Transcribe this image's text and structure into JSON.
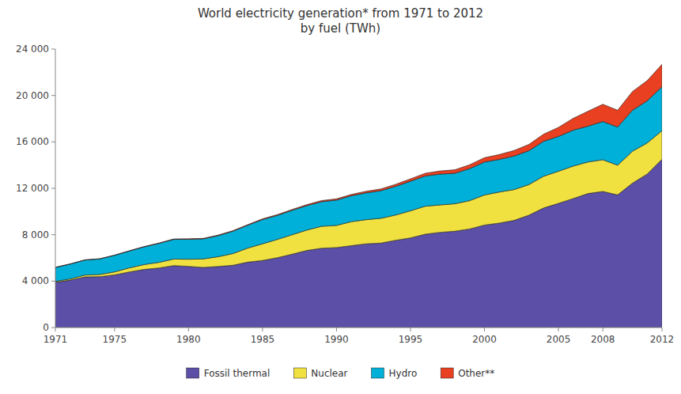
{
  "chart_data": {
    "type": "area",
    "stacked": true,
    "title": "World electricity generation* from 1971 to 2012\nby fuel (TWh)",
    "x": [
      1971,
      1972,
      1973,
      1974,
      1975,
      1976,
      1977,
      1978,
      1979,
      1980,
      1981,
      1982,
      1983,
      1984,
      1985,
      1986,
      1987,
      1988,
      1989,
      1990,
      1991,
      1992,
      1993,
      1994,
      1995,
      1996,
      1997,
      1998,
      1999,
      2000,
      2001,
      2002,
      2003,
      2004,
      2005,
      2006,
      2007,
      2008,
      2009,
      2010,
      2011,
      2012
    ],
    "series": [
      {
        "name": "Fossil thermal",
        "color": "#5b4fa8",
        "values": [
          3896,
          4086,
          4370,
          4388,
          4538,
          4796,
          5008,
          5132,
          5341,
          5272,
          5177,
          5263,
          5366,
          5637,
          5782,
          6019,
          6320,
          6643,
          6836,
          6893,
          7055,
          7216,
          7279,
          7519,
          7727,
          8045,
          8207,
          8302,
          8496,
          8834,
          9005,
          9232,
          9683,
          10304,
          10700,
          11122,
          11549,
          11730,
          11429,
          12437,
          13232,
          14503
        ]
      },
      {
        "name": "Nuclear",
        "color": "#f0e040",
        "values": [
          79,
          107,
          153,
          184,
          255,
          345,
          419,
          484,
          560,
          614,
          736,
          840,
          1008,
          1207,
          1433,
          1574,
          1679,
          1758,
          1891,
          1908,
          2069,
          2080,
          2135,
          2178,
          2334,
          2411,
          2360,
          2366,
          2441,
          2591,
          2672,
          2658,
          2635,
          2738,
          2768,
          2793,
          2719,
          2731,
          2560,
          2756,
          2678,
          2461
        ]
      },
      {
        "name": "Hydro",
        "color": "#00b0d8",
        "values": [
          1204,
          1275,
          1296,
          1340,
          1427,
          1453,
          1527,
          1635,
          1699,
          1722,
          1729,
          1820,
          1927,
          1974,
          2092,
          2071,
          2102,
          2106,
          2122,
          2185,
          2229,
          2311,
          2378,
          2474,
          2546,
          2605,
          2659,
          2627,
          2760,
          2839,
          2811,
          2892,
          2920,
          3009,
          2998,
          3096,
          3085,
          3293,
          3291,
          3531,
          3627,
          3789
        ]
      },
      {
        "name": "Other**",
        "color": "#e84020",
        "values": [
          16,
          18,
          19,
          20,
          24,
          28,
          30,
          34,
          38,
          40,
          44,
          46,
          50,
          53,
          60,
          68,
          78,
          88,
          98,
          107,
          120,
          135,
          155,
          178,
          203,
          236,
          268,
          300,
          335,
          370,
          420,
          480,
          540,
          618,
          788,
          1023,
          1290,
          1488,
          1445,
          1616,
          1745,
          1930
        ]
      }
    ],
    "xlim": [
      1971,
      2012
    ],
    "xticks": [
      1971,
      1975,
      1980,
      1985,
      1990,
      1995,
      2000,
      2005,
      2008,
      2012
    ],
    "ylim": [
      0,
      24000
    ],
    "yticks": [
      0,
      {
        "value": 4000,
        "label": "4 000"
      },
      {
        "value": 8000,
        "label": "8 000"
      },
      {
        "value": 12000,
        "label": "12 000"
      },
      {
        "value": 16000,
        "label": "16 000"
      },
      {
        "value": 20000,
        "label": "20 000"
      },
      {
        "value": 24000,
        "label": "24 000"
      }
    ],
    "grid": false,
    "legend": "bottom"
  }
}
